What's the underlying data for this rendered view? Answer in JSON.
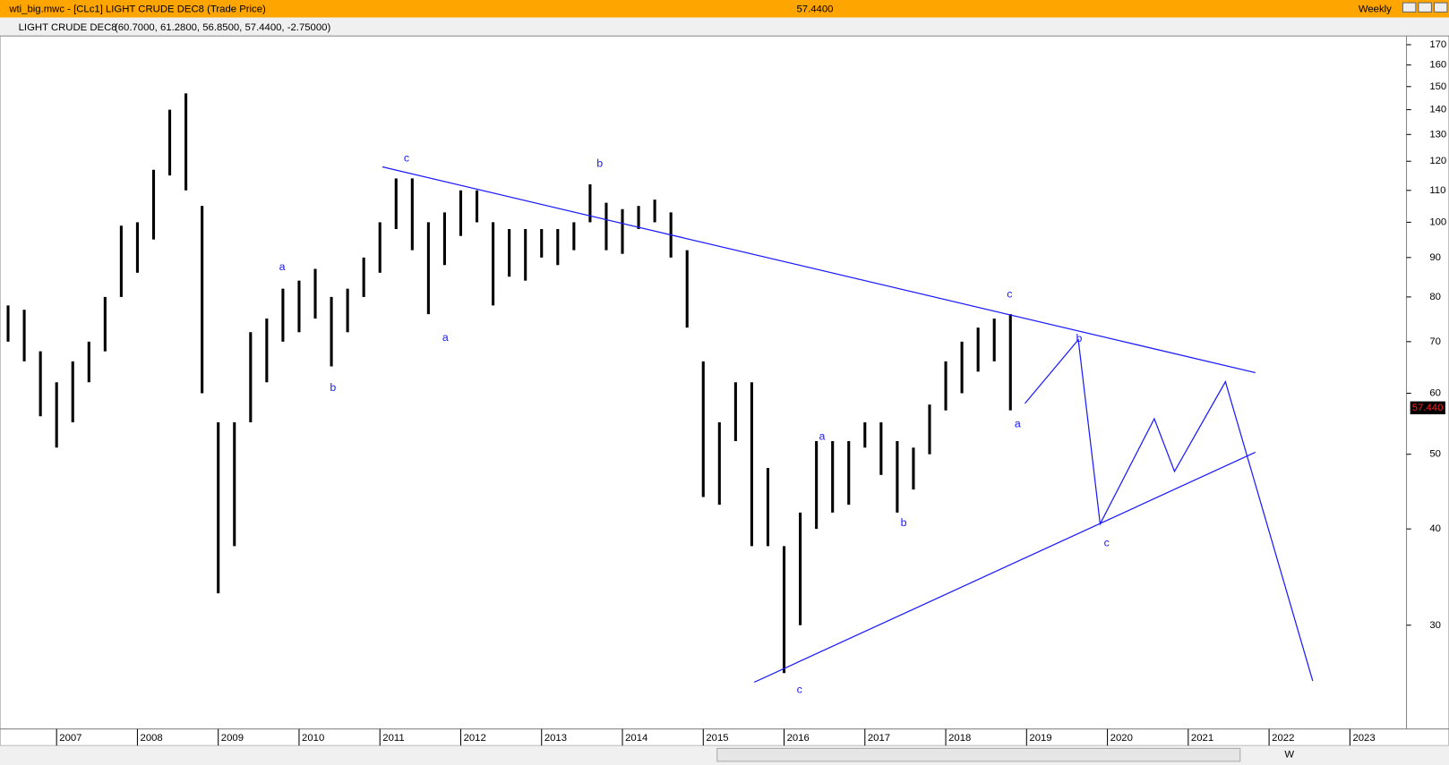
{
  "window": {
    "title": "wti_big.mwc - [CLc1] LIGHT CRUDE DEC8 (Trade Price)",
    "last_price": "57.4400",
    "period": "Weekly",
    "toolbar_period": "W"
  },
  "chart_data": {
    "type": "ohlc",
    "title": "LIGHT CRUDE DEC8",
    "subtitle": "(60.7000, 61.2800, 56.8500, 57.4400, -2.75000)",
    "color": "#000000",
    "log_scale": true,
    "x": [
      2006.4,
      2006.6,
      2006.8,
      2007.0,
      2007.2,
      2007.4,
      2007.6,
      2007.8,
      2008.0,
      2008.2,
      2008.4,
      2008.6,
      2008.8,
      2009.0,
      2009.2,
      2009.4,
      2009.6,
      2009.8,
      2010.0,
      2010.2,
      2010.4,
      2010.6,
      2010.8,
      2011.0,
      2011.2,
      2011.4,
      2011.6,
      2011.8,
      2012.0,
      2012.2,
      2012.4,
      2012.6,
      2012.8,
      2013.0,
      2013.2,
      2013.4,
      2013.6,
      2013.8,
      2014.0,
      2014.2,
      2014.4,
      2014.6,
      2014.8,
      2015.0,
      2015.2,
      2015.4,
      2015.6,
      2015.8,
      2016.0,
      2016.2,
      2016.4,
      2016.6,
      2016.8,
      2017.0,
      2017.2,
      2017.4,
      2017.6,
      2017.8,
      2018.0,
      2018.2,
      2018.4,
      2018.6,
      2018.8
    ],
    "low": [
      70,
      66,
      56,
      51,
      55,
      62,
      68,
      80,
      86,
      95,
      115,
      110,
      60,
      33,
      38,
      55,
      62,
      70,
      72,
      75,
      65,
      72,
      80,
      86,
      98,
      92,
      76,
      88,
      96,
      100,
      78,
      85,
      84,
      90,
      88,
      92,
      100,
      92,
      91,
      98,
      100,
      90,
      73,
      44,
      43,
      52,
      38,
      38,
      26,
      30,
      40,
      42,
      43,
      51,
      47,
      42,
      45,
      50,
      57,
      60,
      64,
      66,
      57
    ],
    "high": [
      78,
      77,
      68,
      62,
      66,
      70,
      80,
      99,
      100,
      117,
      140,
      147,
      105,
      55,
      55,
      72,
      75,
      82,
      84,
      87,
      80,
      82,
      90,
      100,
      114,
      114,
      100,
      103,
      110,
      110,
      100,
      98,
      98,
      98,
      98,
      100,
      112,
      106,
      104,
      105,
      107,
      103,
      92,
      66,
      55,
      62,
      62,
      48,
      38,
      42,
      52,
      52,
      52,
      55,
      55,
      52,
      51,
      58,
      66,
      70,
      73,
      75,
      76
    ],
    "last_price": {
      "value": 57.44,
      "label": "57.440"
    },
    "xlim": [
      2006.3,
      2023.7
    ],
    "xticks": [
      2007,
      2008,
      2009,
      2010,
      2011,
      2012,
      2013,
      2014,
      2015,
      2016,
      2017,
      2018,
      2019,
      2020,
      2021,
      2022,
      2023
    ],
    "ylim": [
      22,
      174
    ],
    "yticks": [
      30,
      40,
      50,
      60,
      70,
      80,
      90,
      100,
      110,
      120,
      130,
      140,
      150,
      160,
      170
    ],
    "line_color": "#1a1aff",
    "trend_lines": [
      {
        "x": [
          2011.03,
          2021.83
        ],
        "y": [
          118,
          63.8
        ]
      },
      {
        "x": [
          2015.63,
          2021.83
        ],
        "y": [
          25.3,
          50.3
        ]
      }
    ],
    "projection": {
      "x": [
        2018.98,
        2019.64,
        2019.91,
        2020.58,
        2020.83,
        2021.46,
        2022.54
      ],
      "y": [
        58.2,
        70.4,
        40.6,
        55.6,
        47.5,
        62.1,
        25.4
      ]
    },
    "annotations": [
      {
        "text": "a",
        "x": 2009.79,
        "y": 87.4
      },
      {
        "text": "b",
        "x": 2010.42,
        "y": 60.9
      },
      {
        "text": "c",
        "x": 2011.33,
        "y": 121
      },
      {
        "text": "a",
        "x": 2011.81,
        "y": 70.8
      },
      {
        "text": "b",
        "x": 2013.72,
        "y": 119
      },
      {
        "text": "c",
        "x": 2016.19,
        "y": 24.7
      },
      {
        "text": "a",
        "x": 2016.47,
        "y": 52.7
      },
      {
        "text": "b",
        "x": 2017.48,
        "y": 40.7
      },
      {
        "text": "c",
        "x": 2018.79,
        "y": 80.6
      },
      {
        "text": "a",
        "x": 2018.89,
        "y": 54.7
      },
      {
        "text": "b",
        "x": 2019.65,
        "y": 70.6
      },
      {
        "text": "c",
        "x": 2019.99,
        "y": 38.3
      }
    ]
  }
}
